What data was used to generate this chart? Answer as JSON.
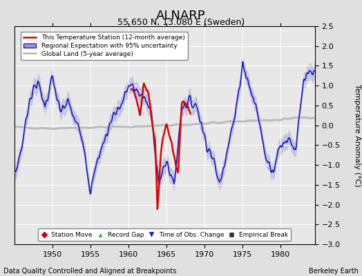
{
  "title": "ALNARP",
  "subtitle": "55.650 N, 13.080 E (Sweden)",
  "ylabel": "Temperature Anomaly (°C)",
  "xlabel_bottom": "Data Quality Controlled and Aligned at Breakpoints",
  "xlabel_right": "Berkeley Earth",
  "year_start": 1945,
  "year_end": 1984.5,
  "ylim": [
    -3.0,
    2.5
  ],
  "yticks": [
    -3,
    -2.5,
    -2,
    -1.5,
    -1,
    -0.5,
    0,
    0.5,
    1,
    1.5,
    2,
    2.5
  ],
  "xticks": [
    1950,
    1955,
    1960,
    1965,
    1970,
    1975,
    1980
  ],
  "bg_color": "#e0e0e0",
  "plot_bg_color": "#e8e8e8",
  "title_fontsize": 13,
  "subtitle_fontsize": 9,
  "legend_main": [
    {
      "label": "This Temperature Station (12-month average)",
      "color": "#dd0000",
      "lw": 1.8
    },
    {
      "label": "Regional Expectation with 95% uncertainty",
      "color": "#2222bb",
      "lw": 1.5
    },
    {
      "label": "Global Land (5-year average)",
      "color": "#aaaaaa",
      "lw": 2.0
    }
  ],
  "marker_legend": [
    {
      "label": "Station Move",
      "color": "#dd0000",
      "marker": "D"
    },
    {
      "label": "Record Gap",
      "color": "#22aa22",
      "marker": "^"
    },
    {
      "label": "Time of Obs. Change",
      "color": "#2222bb",
      "marker": "v"
    },
    {
      "label": "Empirical Break",
      "color": "#333333",
      "marker": "s"
    }
  ],
  "blue_key_points": [
    [
      1945.0,
      -1.3
    ],
    [
      1946.0,
      -0.5
    ],
    [
      1947.0,
      0.7
    ],
    [
      1948.0,
      1.1
    ],
    [
      1949.0,
      0.5
    ],
    [
      1950.0,
      1.2
    ],
    [
      1951.0,
      0.3
    ],
    [
      1952.0,
      0.6
    ],
    [
      1953.0,
      0.1
    ],
    [
      1954.0,
      -0.3
    ],
    [
      1955.0,
      -1.7
    ],
    [
      1956.0,
      -0.8
    ],
    [
      1957.0,
      -0.3
    ],
    [
      1958.0,
      0.3
    ],
    [
      1959.0,
      0.5
    ],
    [
      1960.0,
      1.0
    ],
    [
      1961.0,
      0.9
    ],
    [
      1962.0,
      0.7
    ],
    [
      1963.0,
      0.3
    ],
    [
      1964.0,
      -1.5
    ],
    [
      1965.0,
      -0.9
    ],
    [
      1966.0,
      -1.5
    ],
    [
      1967.0,
      0.5
    ],
    [
      1968.0,
      0.6
    ],
    [
      1969.0,
      0.5
    ],
    [
      1970.0,
      -0.3
    ],
    [
      1971.0,
      -0.8
    ],
    [
      1972.0,
      -1.5
    ],
    [
      1973.0,
      -0.5
    ],
    [
      1974.0,
      0.2
    ],
    [
      1975.0,
      1.6
    ],
    [
      1976.0,
      0.9
    ],
    [
      1977.0,
      0.3
    ],
    [
      1978.0,
      -0.8
    ],
    [
      1979.0,
      -1.1
    ],
    [
      1980.0,
      -0.5
    ],
    [
      1981.0,
      -0.3
    ],
    [
      1982.0,
      -0.6
    ],
    [
      1983.0,
      1.1
    ],
    [
      1984.0,
      1.3
    ]
  ],
  "red_key_points": [
    [
      1960.5,
      0.9
    ],
    [
      1961.0,
      0.7
    ],
    [
      1961.5,
      0.3
    ],
    [
      1962.0,
      1.0
    ],
    [
      1962.5,
      0.9
    ],
    [
      1963.0,
      0.2
    ],
    [
      1963.5,
      -0.4
    ],
    [
      1963.8,
      -2.1
    ],
    [
      1964.2,
      -0.8
    ],
    [
      1964.5,
      -0.3
    ],
    [
      1965.0,
      0.1
    ],
    [
      1965.5,
      -0.3
    ],
    [
      1966.0,
      -0.8
    ],
    [
      1966.5,
      -1.2
    ],
    [
      1967.0,
      0.5
    ],
    [
      1967.5,
      0.6
    ],
    [
      1968.0,
      0.3
    ]
  ],
  "gray_key_points": [
    [
      1945.0,
      -0.05
    ],
    [
      1950.0,
      -0.07
    ],
    [
      1955.0,
      -0.05
    ],
    [
      1960.0,
      -0.03
    ],
    [
      1965.0,
      0.0
    ],
    [
      1970.0,
      0.05
    ],
    [
      1975.0,
      0.1
    ],
    [
      1980.0,
      0.15
    ],
    [
      1984.0,
      0.2
    ]
  ]
}
